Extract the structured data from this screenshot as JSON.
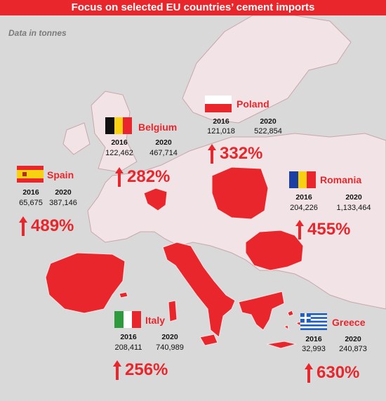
{
  "title": "Focus on selected EU countries’ cement imports",
  "note": "Data in tonnes",
  "colors": {
    "highlight": "#e8262b",
    "land": "#f2e4e6",
    "sea": "#d9d9d9",
    "border": "#c9a6ab"
  },
  "countries": {
    "belgium": {
      "name": "Belgium",
      "y1": "2016",
      "v1": "122,462",
      "y2": "2020",
      "v2": "467,714",
      "pct": "282%"
    },
    "poland": {
      "name": "Poland",
      "y1": "2016",
      "v1": "121,018",
      "y2": "2020",
      "v2": "522,854",
      "pct": "332%"
    },
    "spain": {
      "name": "Spain",
      "y1": "2016",
      "v1": "65,675",
      "y2": "2020",
      "v2": "387,146",
      "pct": "489%"
    },
    "romania": {
      "name": "Romania",
      "y1": "2016",
      "v1": "204,226",
      "y2": "2020",
      "v2": "1,133,464",
      "pct": "455%"
    },
    "italy": {
      "name": "Italy",
      "y1": "2016",
      "v1": "208,411",
      "y2": "2020",
      "v2": "740,989",
      "pct": "256%"
    },
    "greece": {
      "name": "Greece",
      "y1": "2016",
      "v1": "32,993",
      "y2": "2020",
      "v2": "240,873",
      "pct": "630%"
    }
  }
}
